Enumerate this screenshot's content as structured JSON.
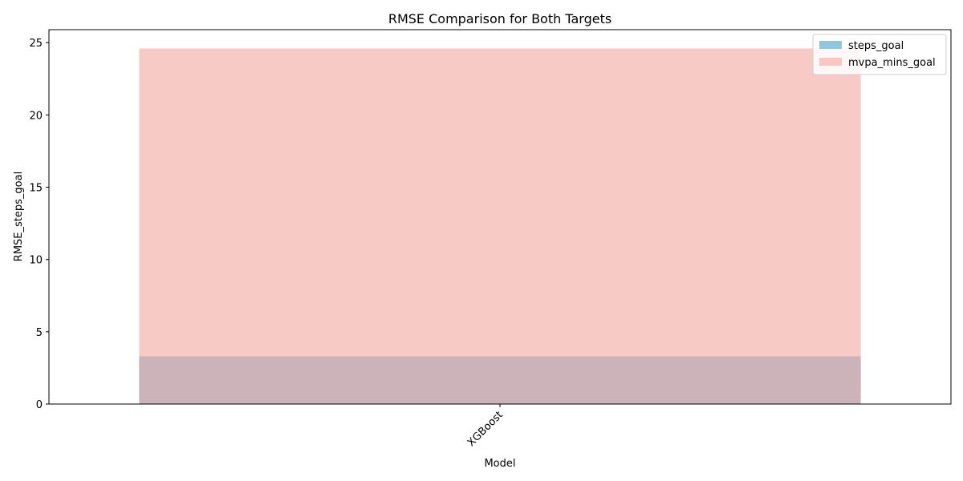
{
  "chart_data": {
    "type": "bar",
    "title": "RMSE Comparison for Both Targets",
    "xlabel": "Model",
    "ylabel": "RMSE_steps_goal",
    "categories": [
      "XGBoost"
    ],
    "series": [
      {
        "name": "steps_goal",
        "values": [
          3.3
        ],
        "color": "#92c5de",
        "opacity": 1.0
      },
      {
        "name": "mvpa_mins_goal",
        "values": [
          24.6
        ],
        "color": "#f4a7a0",
        "opacity": 0.6
      }
    ],
    "ylim": [
      0,
      25.9
    ],
    "yticks": [
      0,
      5,
      10,
      15,
      20,
      25
    ],
    "xtick_rotation": 45,
    "grid": false,
    "legend_position": "top-right"
  }
}
